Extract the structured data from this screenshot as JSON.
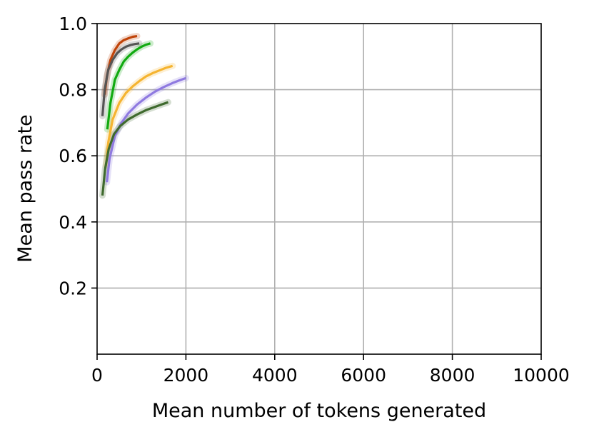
{
  "chart_data": {
    "type": "line",
    "title": "",
    "xlabel": "Mean number of tokens generated",
    "ylabel": "Mean pass rate",
    "xlim": [
      0,
      10000
    ],
    "ylim": [
      0,
      1.0
    ],
    "x_ticks": [
      0,
      2000,
      4000,
      6000,
      8000,
      10000
    ],
    "x_tick_labels": [
      "0",
      "2000",
      "4000",
      "6000",
      "8000",
      "10000"
    ],
    "y_ticks": [
      0.2,
      0.4,
      0.6,
      0.8,
      1.0
    ],
    "y_tick_labels": [
      "0.2",
      "0.4",
      "0.6",
      "0.8",
      "1.0"
    ],
    "grid": true,
    "legend": "none",
    "series": [
      {
        "color": "#c0440a",
        "x": [
          170,
          220,
          300,
          400,
          500,
          600,
          700,
          800,
          900
        ],
        "y": [
          0.785,
          0.84,
          0.89,
          0.92,
          0.94,
          0.95,
          0.955,
          0.96,
          0.962
        ]
      },
      {
        "color": "#555555",
        "x": [
          120,
          170,
          250,
          350,
          450,
          550,
          650,
          750,
          850,
          950
        ],
        "y": [
          0.72,
          0.8,
          0.86,
          0.89,
          0.91,
          0.922,
          0.93,
          0.935,
          0.938,
          0.94
        ]
      },
      {
        "color": "#11aa11",
        "x": [
          230,
          300,
          400,
          500,
          600,
          700,
          800,
          900,
          1000,
          1100,
          1200
        ],
        "y": [
          0.68,
          0.76,
          0.83,
          0.86,
          0.885,
          0.9,
          0.912,
          0.922,
          0.93,
          0.936,
          0.94
        ]
      },
      {
        "color": "#f5b431",
        "x": [
          200,
          250,
          350,
          500,
          650,
          800,
          950,
          1100,
          1250,
          1400,
          1550,
          1700
        ],
        "y": [
          0.57,
          0.64,
          0.71,
          0.76,
          0.79,
          0.81,
          0.826,
          0.84,
          0.85,
          0.858,
          0.866,
          0.872
        ]
      },
      {
        "color": "#8f7ae0",
        "x": [
          220,
          280,
          400,
          550,
          700,
          900,
          1100,
          1300,
          1500,
          1700,
          1850,
          2000
        ],
        "y": [
          0.52,
          0.59,
          0.66,
          0.7,
          0.728,
          0.755,
          0.776,
          0.794,
          0.808,
          0.82,
          0.828,
          0.835
        ]
      },
      {
        "color": "#3f6a2e",
        "x": [
          120,
          180,
          260,
          380,
          520,
          700,
          900,
          1100,
          1300,
          1450,
          1600
        ],
        "y": [
          0.48,
          0.56,
          0.62,
          0.665,
          0.69,
          0.71,
          0.725,
          0.738,
          0.748,
          0.755,
          0.762
        ]
      }
    ]
  }
}
